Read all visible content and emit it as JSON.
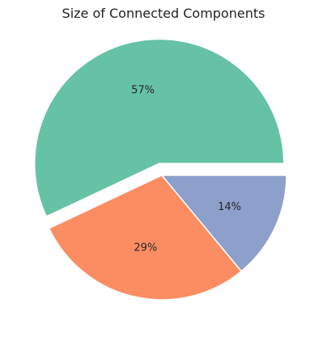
{
  "chart_data": {
    "type": "pie",
    "title": "Size of Connected Components",
    "slices": [
      {
        "value": 57,
        "label": "57%",
        "color": "#66c2a5",
        "exploded": true
      },
      {
        "value": 29,
        "label": "29%",
        "color": "#fc8d62",
        "exploded": false
      },
      {
        "value": 14,
        "label": "14%",
        "color": "#8da0cb",
        "exploded": false
      }
    ],
    "start_angle_deg": 0,
    "direction": "counterclockwise",
    "legend": "none"
  }
}
